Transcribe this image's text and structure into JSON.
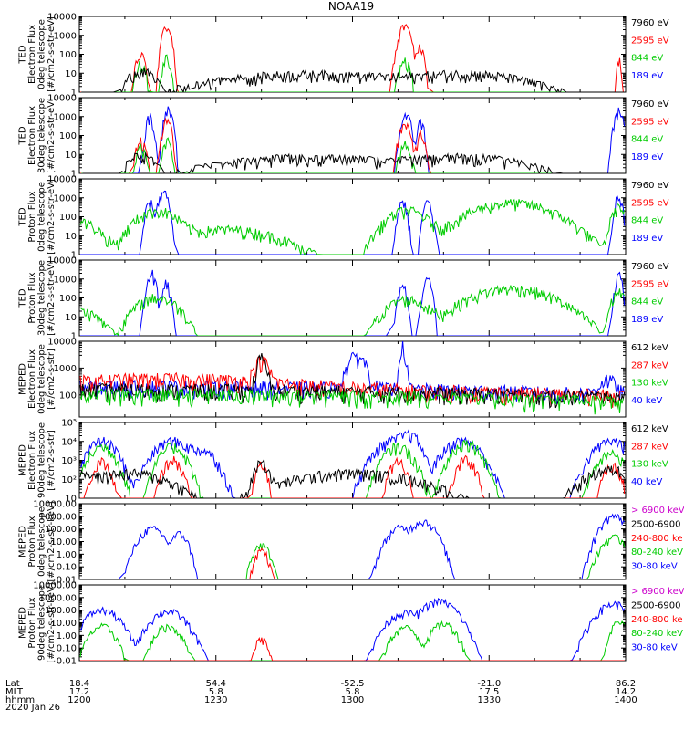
{
  "title": "NOAA19",
  "date_label": "2020 Jan 26",
  "chart_data": [
    {
      "type": "line",
      "id": "p1",
      "ylabel": [
        "TED",
        "Electron Flux",
        "0deg telescope",
        "[#/cm2-s-str-eV]"
      ],
      "ylim": [
        1,
        10000
      ],
      "yscale": "log",
      "y_ticks": [
        "1",
        "10",
        "100",
        "1000",
        "10000"
      ],
      "legend": [
        {
          "label": "7960 eV",
          "color": "#000000"
        },
        {
          "label": "2595 eV",
          "color": "#ff0000"
        },
        {
          "label": "844 eV",
          "color": "#00cc00"
        },
        {
          "label": "189 eV",
          "color": "#0000ff"
        }
      ],
      "series": [
        {
          "color": "#ff0000",
          "bumps": [
            [
              1213.5,
              0.7,
              80
            ],
            [
              1219.2,
              0.6,
              3000
            ],
            [
              1311.5,
              0.8,
              3000
            ],
            [
              1314.8,
              0.6,
              200
            ],
            [
              1358.5,
              0.3,
              60
            ]
          ]
        },
        {
          "color": "#00cc00",
          "bumps": [
            [
              1213.5,
              0.7,
              30
            ],
            [
              1219.2,
              0.6,
              60
            ],
            [
              1311.5,
              0.8,
              40
            ]
          ]
        },
        {
          "color": "#000000",
          "bumps": [
            [
              1213.5,
              2,
              12
            ],
            [
              1250,
              15,
              8
            ],
            [
              1325,
              10,
              8
            ]
          ]
        }
      ],
      "flag": {
        "stroke": 1.0
      }
    },
    {
      "type": "line",
      "id": "p2",
      "ylabel": [
        "TED",
        "Electron Flux",
        "30deg telescope",
        "[#/cm2-s-str-eV]"
      ],
      "ylim": [
        1,
        10000
      ],
      "yscale": "log",
      "y_ticks": [
        "1",
        "10",
        "100",
        "1000",
        "10000"
      ],
      "legend": [
        {
          "label": "7960 eV",
          "color": "#000000"
        },
        {
          "label": "2595 eV",
          "color": "#ff0000"
        },
        {
          "label": "844 eV",
          "color": "#00cc00"
        },
        {
          "label": "189 eV",
          "color": "#0000ff"
        }
      ],
      "series": [
        {
          "color": "#0000ff",
          "bumps": [
            [
              1215.5,
              0.5,
              1000
            ],
            [
              1219.5,
              0.6,
              2000
            ],
            [
              1311.8,
              0.7,
              1000
            ],
            [
              1315,
              0.5,
              500
            ],
            [
              1358.5,
              0.6,
              2000
            ]
          ]
        },
        {
          "color": "#ff0000",
          "bumps": [
            [
              1213.5,
              0.7,
              50
            ],
            [
              1219.2,
              0.6,
              800
            ],
            [
              1311.5,
              0.8,
              300
            ],
            [
              1315,
              0.6,
              100
            ]
          ]
        },
        {
          "color": "#00cc00",
          "bumps": [
            [
              1213.5,
              0.7,
              20
            ],
            [
              1219.2,
              0.6,
              50
            ],
            [
              1311.5,
              0.8,
              30
            ]
          ]
        },
        {
          "color": "#000000",
          "bumps": [
            [
              1213.5,
              2,
              8
            ],
            [
              1250,
              15,
              6
            ],
            [
              1325,
              10,
              6
            ]
          ]
        }
      ]
    },
    {
      "type": "line",
      "id": "p3",
      "ylabel": [
        "TED",
        "Proton Flux",
        "0deg telescope",
        "[#/cm2-s-str-eV]"
      ],
      "ylim": [
        1,
        10000
      ],
      "yscale": "log",
      "y_ticks": [
        "1",
        "10",
        "100",
        "1000",
        "10000"
      ],
      "legend": [
        {
          "label": "7960 eV",
          "color": "#000000"
        },
        {
          "label": "2595 eV",
          "color": "#ff0000"
        },
        {
          "label": "844 eV",
          "color": "#00cc00"
        },
        {
          "label": "189 eV",
          "color": "#0000ff"
        }
      ],
      "series": [
        {
          "color": "#0000ff",
          "bumps": [
            [
              1215.5,
              0.6,
              500
            ],
            [
              1218.5,
              0.7,
              2000
            ],
            [
              1311,
              0.6,
              600
            ],
            [
              1316.5,
              0.6,
              500
            ],
            [
              1358.5,
              0.5,
              1500
            ]
          ]
        },
        {
          "color": "#00cc00",
          "bumps": [
            [
              1200,
              3,
              50
            ],
            [
              1217,
              3,
              200
            ],
            [
              1232,
              8,
              20
            ],
            [
              1312,
              3,
              200
            ],
            [
              1335,
              6,
              500
            ],
            [
              1358.5,
              1,
              300
            ]
          ]
        }
      ]
    },
    {
      "type": "line",
      "id": "p4",
      "ylabel": [
        "TED",
        "Proton Flux",
        "30deg telescope",
        "[#/cm2-s-str-eV]"
      ],
      "ylim": [
        1,
        10000
      ],
      "yscale": "log",
      "y_ticks": [
        "1",
        "10",
        "100",
        "1000",
        "10000"
      ],
      "legend": [
        {
          "label": "7960 eV",
          "color": "#000000"
        },
        {
          "label": "2595 eV",
          "color": "#ff0000"
        },
        {
          "label": "844 eV",
          "color": "#00cc00"
        },
        {
          "label": "189 eV",
          "color": "#0000ff"
        }
      ],
      "series": [
        {
          "color": "#0000ff",
          "bumps": [
            [
              1215.8,
              0.6,
              2000
            ],
            [
              1219,
              0.6,
              600
            ],
            [
              1311,
              0.6,
              400
            ],
            [
              1316.5,
              0.6,
              800
            ],
            [
              1358.5,
              0.5,
              1500
            ]
          ]
        },
        {
          "color": "#00cc00",
          "bumps": [
            [
              1200,
              3,
              20
            ],
            [
              1217,
              3,
              100
            ],
            [
              1312,
              3,
              80
            ],
            [
              1335,
              6,
              300
            ],
            [
              1358.5,
              1,
              200
            ]
          ]
        }
      ]
    },
    {
      "type": "line",
      "id": "p5",
      "ylabel": [
        "MEPED",
        "Electron Flux",
        "0deg telescope",
        "[#/cm2-s-str]"
      ],
      "ylim": [
        15,
        10000
      ],
      "yscale": "log",
      "y_ticks": [
        "100",
        "1000",
        "10000"
      ],
      "legend": [
        {
          "label": "612 keV",
          "color": "#000000"
        },
        {
          "label": "287 keV",
          "color": "#ff0000"
        },
        {
          "label": "130 keV",
          "color": "#00cc00"
        },
        {
          "label": "40 keV",
          "color": "#0000ff"
        }
      ],
      "series": [
        {
          "color": "#0000ff",
          "bumps": [
            [
              1200,
              100,
              200
            ],
            [
              1301,
              1.5,
              2500
            ],
            [
              1311,
              0.5,
              6000
            ],
            [
              1356,
              1.5,
              250
            ]
          ]
        },
        {
          "color": "#ff0000",
          "bumps": [
            [
              1200,
              100,
              180
            ],
            [
              1220,
              20,
              200
            ],
            [
              1240,
              1.2,
              1500
            ]
          ]
        },
        {
          "color": "#000000",
          "bumps": [
            [
              1200,
              100,
              150
            ],
            [
              1240,
              0.8,
              2000
            ]
          ]
        },
        {
          "color": "#00cc00",
          "bumps": [
            [
              1200,
              100,
              100
            ]
          ]
        }
      ]
    },
    {
      "type": "line",
      "id": "p6",
      "ylabel": [
        "MEPED",
        "Electron Flux",
        "90deg telescope",
        "[#/cm2-s-str]"
      ],
      "ylim": [
        10,
        100000
      ],
      "yscale": "log",
      "y_ticks": [
        "10",
        "10²",
        "10³",
        "10⁴",
        "10⁵"
      ],
      "legend": [
        {
          "label": "612 keV",
          "color": "#000000"
        },
        {
          "label": "287 keV",
          "color": "#ff0000"
        },
        {
          "label": "130 keV",
          "color": "#00cc00"
        },
        {
          "label": "40 keV",
          "color": "#0000ff"
        }
      ],
      "series": [
        {
          "color": "#0000ff",
          "bumps": [
            [
              1205,
              2,
              10000
            ],
            [
              1220.5,
              2.5,
              10000
            ],
            [
              1227,
              2,
              3000
            ],
            [
              1309,
              2.5,
              10000
            ],
            [
              1312.5,
              1.5,
              20000
            ],
            [
              1324,
              2.5,
              10000
            ],
            [
              1357,
              2.5,
              10000
            ]
          ]
        },
        {
          "color": "#00cc00",
          "bumps": [
            [
              1205,
              1.8,
              5000
            ],
            [
              1220.5,
              1.8,
              5000
            ],
            [
              1310,
              2,
              5000
            ],
            [
              1325,
              2,
              8000
            ],
            [
              1357,
              2,
              2000
            ]
          ]
        },
        {
          "color": "#ff0000",
          "bumps": [
            [
              1205,
              1.2,
              800
            ],
            [
              1220.5,
              1.3,
              1000
            ],
            [
              1240,
              0.8,
              500
            ],
            [
              1310,
              1.2,
              800
            ],
            [
              1325,
              1.3,
              1000
            ],
            [
              1357,
              1.2,
              500
            ]
          ]
        },
        {
          "color": "#000000",
          "bumps": [
            [
              1200,
              2,
              200
            ],
            [
              1211,
              6,
              200
            ],
            [
              1240,
              1,
              800
            ],
            [
              1300,
              10,
              200
            ],
            [
              1357,
              4,
              300
            ]
          ]
        }
      ]
    },
    {
      "type": "line",
      "id": "p7",
      "ylabel": [
        "MEPED",
        "Proton Flux",
        "0deg telescope",
        "[#/cm2-s-str-keV]"
      ],
      "ylim": [
        0.01,
        10000
      ],
      "yscale": "log",
      "y_ticks": [
        "0.01",
        "0.10",
        "1.00",
        "10.00",
        "100.00",
        "1000.00",
        "10000.00"
      ],
      "legend": [
        {
          "label": "> 6900 keV",
          "color": "#cc00cc"
        },
        {
          "label": "2500-6900",
          "color": "#000000"
        },
        {
          "label": "240-800 ke",
          "color": "#ff0000"
        },
        {
          "label": "80-240 keV",
          "color": "#00cc00"
        },
        {
          "label": "30-80 keV",
          "color": "#0000ff"
        }
      ],
      "series": [
        {
          "color": "#0000ff",
          "bumps": [
            [
              1216,
              1.5,
              100
            ],
            [
              1222,
              1,
              40
            ],
            [
              1310.5,
              1.5,
              120
            ],
            [
              1315.5,
              1.5,
              400
            ],
            [
              1357.5,
              1.5,
              1000
            ]
          ]
        },
        {
          "color": "#00cc00",
          "bumps": [
            [
              1240,
              1,
              5
            ],
            [
              1357.5,
              1.5,
              20
            ]
          ]
        },
        {
          "color": "#ff0000",
          "bumps": [
            [
              1240,
              0.8,
              2
            ]
          ]
        }
      ]
    },
    {
      "type": "line",
      "id": "p8",
      "ylabel": [
        "MEPED",
        "Proton Flux",
        "90deg telescope",
        "[#/cm2-s-str-keV]"
      ],
      "ylim": [
        0.01,
        10000
      ],
      "yscale": "log",
      "y_ticks": [
        "0.01",
        "0.10",
        "1.00",
        "10.00",
        "100.00",
        "1000.00",
        "10000.00"
      ],
      "legend": [
        {
          "label": "> 6900 keV",
          "color": "#cc00cc"
        },
        {
          "label": "2500-6900",
          "color": "#000000"
        },
        {
          "label": "240-800 ke",
          "color": "#ff0000"
        },
        {
          "label": "80-240 keV",
          "color": "#00cc00"
        },
        {
          "label": "30-80 keV",
          "color": "#0000ff"
        }
      ],
      "series": [
        {
          "color": "#0000ff",
          "bumps": [
            [
              1205,
              2,
              100
            ],
            [
              1219.5,
              2,
              80
            ],
            [
              1311.5,
              2,
              60
            ],
            [
              1319,
              2,
              500
            ],
            [
              1357.5,
              2,
              300
            ]
          ]
        },
        {
          "color": "#00cc00",
          "bumps": [
            [
              1205,
              1.5,
              5
            ],
            [
              1219.5,
              1.5,
              5
            ],
            [
              1311.5,
              1.5,
              4
            ],
            [
              1320,
              1.5,
              8
            ],
            [
              1358.5,
              1,
              10
            ]
          ]
        },
        {
          "color": "#ff0000",
          "bumps": [
            [
              1240,
              0.8,
              0.5
            ]
          ]
        }
      ]
    }
  ],
  "x_axis": {
    "row_labels": [
      "Lat",
      "MLT",
      "hhmm"
    ],
    "ticks": [
      {
        "lat": "18.4",
        "mlt": "17.2",
        "hhmm": "1200"
      },
      {
        "lat": "54.4",
        "mlt": "5.8",
        "hhmm": "1230"
      },
      {
        "lat": "-52.5",
        "mlt": "5.8",
        "hhmm": "1300"
      },
      {
        "lat": "-21.0",
        "mlt": "17.5",
        "hhmm": "1330"
      },
      {
        "lat": "86.2",
        "mlt": "14.2",
        "hhmm": "1400"
      }
    ]
  }
}
